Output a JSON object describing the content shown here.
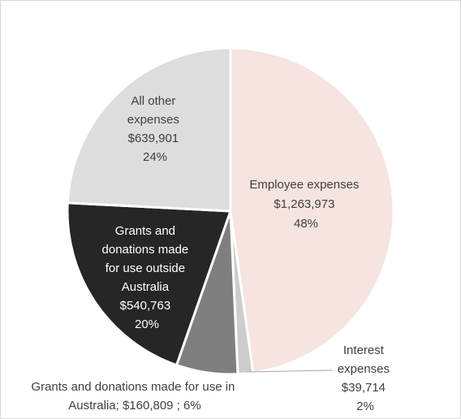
{
  "chart_data": {
    "type": "pie",
    "title": "",
    "slices": [
      {
        "label": "Employee expenses",
        "value": 1263973,
        "value_text": "$1,263,973",
        "percent_text": "48%",
        "color": "#f5e4df"
      },
      {
        "label": "Interest expenses",
        "value": 39714,
        "value_text": "$39,714",
        "percent_text": "2%",
        "color": "#cccccc"
      },
      {
        "label": "Grants and donations made for use in Australia",
        "value": 160809,
        "value_text": "$160,809",
        "percent_text": "6%",
        "color": "#7f7f7f"
      },
      {
        "label": "Grants and donations made for use outside Australia",
        "value": 540763,
        "value_text": "$540,763",
        "percent_text": "20%",
        "color": "#262626"
      },
      {
        "label": "All other expenses",
        "value": 639901,
        "value_text": "$639,901",
        "percent_text": "24%",
        "color": "#dddddd"
      }
    ],
    "label_lines": {
      "employee": [
        "Employee expenses",
        "$1,263,973",
        "48%"
      ],
      "interest": [
        "Interest",
        "expenses",
        "$39,714",
        "2%"
      ],
      "grants_in_australia": [
        "Grants and donations made for use in",
        "Australia;  $160,809 ; 6%"
      ],
      "grants_outside_australia": [
        "Grants and",
        "donations made",
        "for use outside",
        "Australia",
        "$540,763",
        "20%"
      ],
      "other": [
        "All other",
        "expenses",
        "$639,901",
        "24%"
      ]
    }
  }
}
